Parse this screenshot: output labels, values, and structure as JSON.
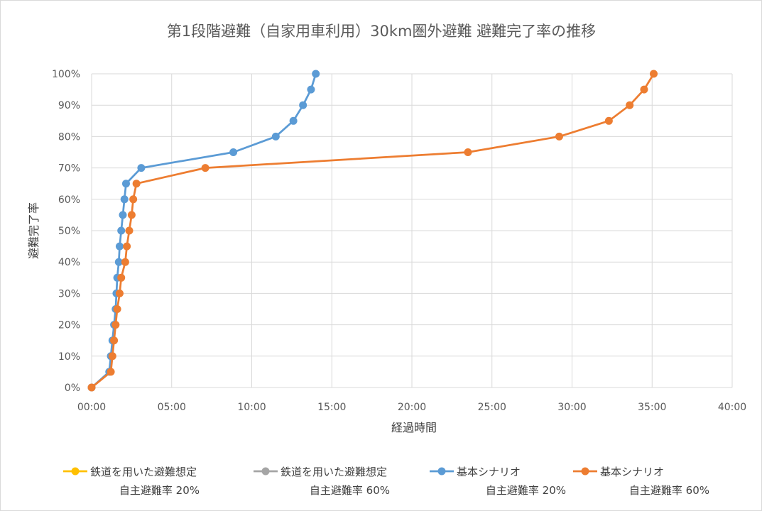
{
  "chart_data": {
    "type": "line",
    "title": "第1段階避難（自家用車利用）30km圏外避難 避難完了率の推移",
    "xlabel": "経過時間",
    "ylabel": "避難完了率",
    "x_unit": "hours",
    "xlim": [
      0,
      40
    ],
    "ylim": [
      0,
      100
    ],
    "x_ticks": [
      0,
      5,
      10,
      15,
      20,
      25,
      30,
      35,
      40
    ],
    "x_tick_labels": [
      "00:00",
      "05:00",
      "10:00",
      "15:00",
      "20:00",
      "25:00",
      "30:00",
      "35:00",
      "40:00"
    ],
    "y_ticks": [
      0,
      10,
      20,
      30,
      40,
      50,
      60,
      70,
      80,
      90,
      100
    ],
    "y_tick_labels": [
      "0%",
      "10%",
      "20%",
      "30%",
      "40%",
      "50%",
      "60%",
      "70%",
      "80%",
      "90%",
      "100%"
    ],
    "grid": true,
    "legend_position": "bottom",
    "series": [
      {
        "name_line1": "鉄道を用いた避難想定",
        "name_line2": "自主避難率 20%",
        "color": "#FFC000",
        "x": [],
        "y": []
      },
      {
        "name_line1": "鉄道を用いた避難想定",
        "name_line2": "自主避難率 60%",
        "color": "#A5A5A5",
        "x": [],
        "y": []
      },
      {
        "name_line1": "基本シナリオ",
        "name_line2": "自主避難率 20%",
        "color": "#5B9BD5",
        "x": [
          0,
          1.1,
          1.2,
          1.3,
          1.4,
          1.5,
          1.55,
          1.6,
          1.7,
          1.75,
          1.85,
          1.95,
          2.05,
          2.15,
          3.1,
          8.85,
          11.5,
          12.6,
          13.2,
          13.7,
          14.0
        ],
        "y": [
          0,
          5,
          10,
          15,
          20,
          25,
          30,
          35,
          40,
          45,
          50,
          55,
          60,
          65,
          70,
          75,
          80,
          85,
          90,
          95,
          100
        ]
      },
      {
        "name_line1": "基本シナリオ",
        "name_line2": "自主避難率 60%",
        "color": "#ED7D31",
        "x": [
          0,
          1.2,
          1.3,
          1.4,
          1.5,
          1.6,
          1.75,
          1.85,
          2.1,
          2.2,
          2.35,
          2.5,
          2.6,
          2.8,
          7.1,
          23.5,
          29.2,
          32.3,
          33.6,
          34.5,
          35.1
        ],
        "y": [
          0,
          5,
          10,
          15,
          20,
          25,
          30,
          35,
          40,
          45,
          50,
          55,
          60,
          65,
          70,
          75,
          80,
          85,
          90,
          95,
          100
        ]
      }
    ]
  }
}
